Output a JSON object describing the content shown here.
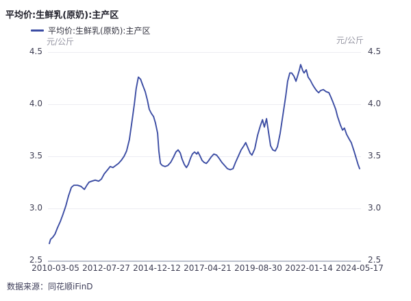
{
  "header": {
    "title": "平均价:生鲜乳(原奶):主产区"
  },
  "legend": {
    "label": "平均价:生鲜乳(原奶):主产区",
    "marker": "line-swatch",
    "color": "#3B4CA3"
  },
  "axes": {
    "unit_left": "元/公斤",
    "unit_right": "元/公斤"
  },
  "footer": {
    "source": "数据来源：同花顺iFinD"
  },
  "colors": {
    "line": "#3B4CA3",
    "grid": "#ececf2",
    "axis": "#bcc0cc",
    "tick_text": "#3d3d52",
    "unit_text": "#9595a2",
    "title_text": "#1d1d28",
    "background": "#ffffff"
  },
  "chart_data": {
    "type": "line",
    "title": "平均价:生鲜乳(原奶):主产区",
    "ylabel": "元/公斤",
    "ylim": [
      2.5,
      4.5
    ],
    "y_ticks": [
      2.5,
      3.0,
      3.5,
      4.0,
      4.5
    ],
    "x_tick_labels": [
      "2010-03-05",
      "2012-07-27",
      "2014-12-12",
      "2017-04-21",
      "2019-08-30",
      "2022-01-14",
      "2024-05-17"
    ],
    "x_range": [
      "2010-03-05",
      "2024-05-17"
    ],
    "grid": "horizontal",
    "legend_position": "top-left",
    "series": [
      {
        "name": "平均价:生鲜乳(原奶):主产区",
        "color": "#3B4CA3",
        "points": [
          [
            0.0,
            2.66
          ],
          [
            0.004,
            2.7
          ],
          [
            0.011,
            2.72
          ],
          [
            0.018,
            2.75
          ],
          [
            0.026,
            2.81
          ],
          [
            0.035,
            2.87
          ],
          [
            0.044,
            2.94
          ],
          [
            0.053,
            3.02
          ],
          [
            0.062,
            3.12
          ],
          [
            0.071,
            3.2
          ],
          [
            0.079,
            3.22
          ],
          [
            0.091,
            3.22
          ],
          [
            0.102,
            3.21
          ],
          [
            0.113,
            3.18
          ],
          [
            0.121,
            3.22
          ],
          [
            0.128,
            3.25
          ],
          [
            0.137,
            3.26
          ],
          [
            0.148,
            3.27
          ],
          [
            0.159,
            3.26
          ],
          [
            0.168,
            3.28
          ],
          [
            0.177,
            3.33
          ],
          [
            0.188,
            3.37
          ],
          [
            0.196,
            3.4
          ],
          [
            0.205,
            3.39
          ],
          [
            0.214,
            3.41
          ],
          [
            0.223,
            3.43
          ],
          [
            0.232,
            3.46
          ],
          [
            0.241,
            3.5
          ],
          [
            0.249,
            3.55
          ],
          [
            0.258,
            3.66
          ],
          [
            0.267,
            3.85
          ],
          [
            0.274,
            4.0
          ],
          [
            0.28,
            4.15
          ],
          [
            0.287,
            4.26
          ],
          [
            0.294,
            4.24
          ],
          [
            0.3,
            4.19
          ],
          [
            0.309,
            4.12
          ],
          [
            0.316,
            4.04
          ],
          [
            0.322,
            3.95
          ],
          [
            0.329,
            3.91
          ],
          [
            0.336,
            3.88
          ],
          [
            0.342,
            3.82
          ],
          [
            0.349,
            3.72
          ],
          [
            0.353,
            3.55
          ],
          [
            0.358,
            3.43
          ],
          [
            0.364,
            3.41
          ],
          [
            0.373,
            3.4
          ],
          [
            0.382,
            3.41
          ],
          [
            0.391,
            3.44
          ],
          [
            0.4,
            3.49
          ],
          [
            0.408,
            3.54
          ],
          [
            0.415,
            3.56
          ],
          [
            0.422,
            3.53
          ],
          [
            0.428,
            3.47
          ],
          [
            0.435,
            3.42
          ],
          [
            0.442,
            3.39
          ],
          [
            0.448,
            3.42
          ],
          [
            0.455,
            3.48
          ],
          [
            0.461,
            3.52
          ],
          [
            0.468,
            3.54
          ],
          [
            0.475,
            3.52
          ],
          [
            0.479,
            3.54
          ],
          [
            0.486,
            3.5
          ],
          [
            0.492,
            3.46
          ],
          [
            0.499,
            3.44
          ],
          [
            0.506,
            3.43
          ],
          [
            0.512,
            3.45
          ],
          [
            0.521,
            3.49
          ],
          [
            0.53,
            3.52
          ],
          [
            0.539,
            3.51
          ],
          [
            0.547,
            3.48
          ],
          [
            0.556,
            3.44
          ],
          [
            0.565,
            3.41
          ],
          [
            0.574,
            3.38
          ],
          [
            0.583,
            3.37
          ],
          [
            0.592,
            3.38
          ],
          [
            0.6,
            3.44
          ],
          [
            0.609,
            3.5
          ],
          [
            0.618,
            3.56
          ],
          [
            0.627,
            3.6
          ],
          [
            0.633,
            3.63
          ],
          [
            0.64,
            3.58
          ],
          [
            0.647,
            3.53
          ],
          [
            0.653,
            3.51
          ],
          [
            0.662,
            3.57
          ],
          [
            0.671,
            3.7
          ],
          [
            0.68,
            3.79
          ],
          [
            0.687,
            3.85
          ],
          [
            0.693,
            3.78
          ],
          [
            0.7,
            3.86
          ],
          [
            0.706,
            3.74
          ],
          [
            0.713,
            3.6
          ],
          [
            0.72,
            3.56
          ],
          [
            0.728,
            3.55
          ],
          [
            0.735,
            3.59
          ],
          [
            0.744,
            3.72
          ],
          [
            0.753,
            3.9
          ],
          [
            0.762,
            4.08
          ],
          [
            0.768,
            4.22
          ],
          [
            0.775,
            4.3
          ],
          [
            0.781,
            4.3
          ],
          [
            0.788,
            4.27
          ],
          [
            0.795,
            4.22
          ],
          [
            0.801,
            4.28
          ],
          [
            0.806,
            4.33
          ],
          [
            0.81,
            4.38
          ],
          [
            0.817,
            4.32
          ],
          [
            0.821,
            4.3
          ],
          [
            0.828,
            4.33
          ],
          [
            0.834,
            4.26
          ],
          [
            0.841,
            4.23
          ],
          [
            0.848,
            4.19
          ],
          [
            0.854,
            4.16
          ],
          [
            0.861,
            4.13
          ],
          [
            0.868,
            4.11
          ],
          [
            0.874,
            4.13
          ],
          [
            0.883,
            4.14
          ],
          [
            0.892,
            4.12
          ],
          [
            0.901,
            4.11
          ],
          [
            0.907,
            4.07
          ],
          [
            0.914,
            4.02
          ],
          [
            0.923,
            3.95
          ],
          [
            0.929,
            3.88
          ],
          [
            0.938,
            3.8
          ],
          [
            0.945,
            3.75
          ],
          [
            0.951,
            3.77
          ],
          [
            0.958,
            3.71
          ],
          [
            0.967,
            3.66
          ],
          [
            0.973,
            3.63
          ],
          [
            0.982,
            3.55
          ],
          [
            0.989,
            3.48
          ],
          [
            0.995,
            3.42
          ],
          [
            1.0,
            3.38
          ]
        ]
      }
    ]
  }
}
